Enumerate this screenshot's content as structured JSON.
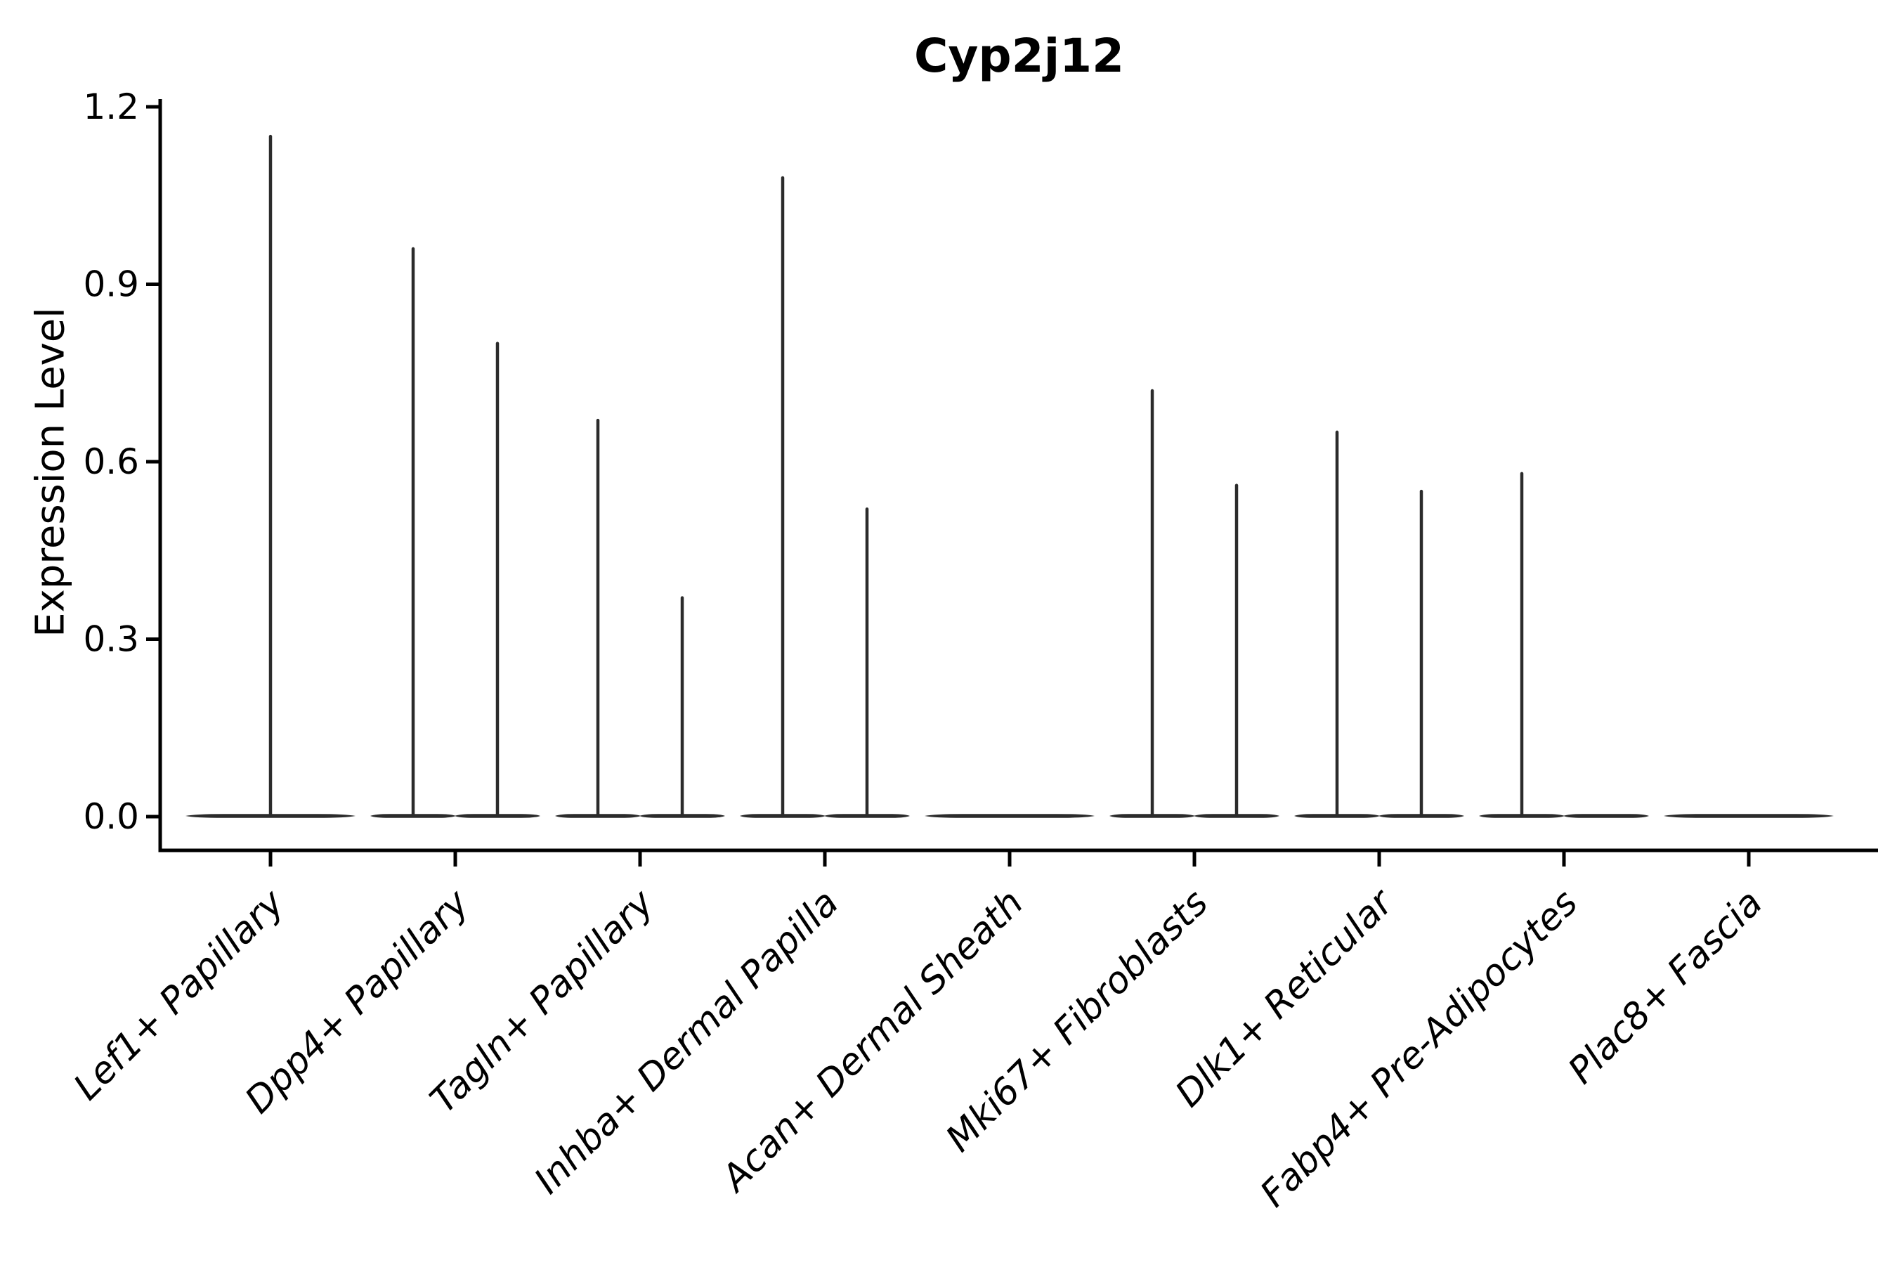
{
  "figure": {
    "title": "Cyp2j12",
    "ylabel": "Expression Level"
  },
  "chart_data": {
    "type": "violin",
    "title": "Cyp2j12",
    "xlabel": "",
    "ylabel": "Expression Level",
    "y_ticks": [
      0.0,
      0.3,
      0.6,
      0.9,
      1.2
    ],
    "y_tick_labels": [
      "0.0",
      "0.3",
      "0.6",
      "0.9",
      "1.2"
    ],
    "ylim": [
      -0.057,
      1.21
    ],
    "grid": false,
    "legend": "none",
    "x_tick_rotation_deg": 45,
    "x_tick_style": "italic",
    "violin_color": "#2b2b2b",
    "axis_color": "#000000",
    "categories": [
      "Lef1+ Papillary",
      "Dpp4+ Papillary",
      "Tagln+ Papillary",
      "Inhba+ Dermal Papilla",
      "Acan+ Dermal Sheath",
      "Mki67+ Fibroblasts",
      "Dlk1+ Reticular",
      "Fabp4+ Pre-Adipocytes",
      "Plac8+ Fascia"
    ],
    "categories_data": [
      {
        "label": "Lef1+ Papillary",
        "violins": [
          {
            "position": "center",
            "max": 1.15
          }
        ]
      },
      {
        "label": "Dpp4+ Papillary",
        "violins": [
          {
            "position": "left",
            "max": 0.96
          },
          {
            "position": "right",
            "max": 0.8
          }
        ]
      },
      {
        "label": "Tagln+ Papillary",
        "violins": [
          {
            "position": "left",
            "max": 0.67
          },
          {
            "position": "right",
            "max": 0.37
          }
        ]
      },
      {
        "label": "Inhba+ Dermal Papilla",
        "violins": [
          {
            "position": "left",
            "max": 1.08
          },
          {
            "position": "right",
            "max": 0.52
          }
        ]
      },
      {
        "label": "Acan+ Dermal Sheath",
        "violins": [
          {
            "position": "center",
            "max": 0
          }
        ]
      },
      {
        "label": "Mki67+ Fibroblasts",
        "violins": [
          {
            "position": "left",
            "max": 0.72
          },
          {
            "position": "right",
            "max": 0.56
          }
        ]
      },
      {
        "label": "Dlk1+ Reticular",
        "violins": [
          {
            "position": "left",
            "max": 0.65
          },
          {
            "position": "right",
            "max": 0.55
          }
        ]
      },
      {
        "label": "Fabp4+ Pre-Adipocytes",
        "violins": [
          {
            "position": "left",
            "max": 0.58
          },
          {
            "position": "right",
            "max": 0
          }
        ]
      },
      {
        "label": "Plac8+ Fascia",
        "violins": [
          {
            "position": "center",
            "max": 0
          }
        ]
      }
    ]
  }
}
